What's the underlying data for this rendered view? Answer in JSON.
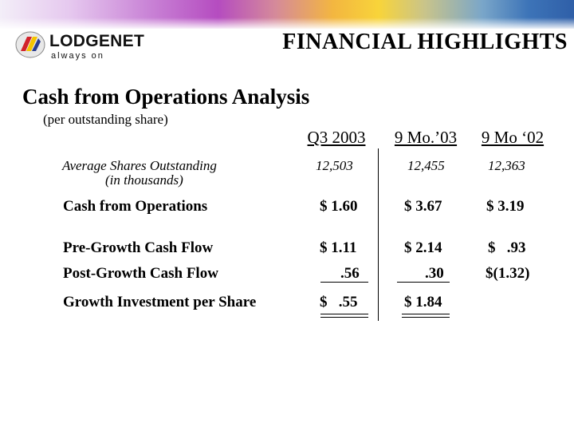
{
  "brand": {
    "name": "LODGENET",
    "tagline": "always on",
    "colors": {
      "red": "#d2232a",
      "blue": "#2b3d8f",
      "yellow": "#f5c400",
      "banner_blue": "#2f5fa8",
      "banner_purple": "#b54cc0",
      "banner_gold": "#f3b640"
    }
  },
  "header": {
    "title": "FINANCIAL HIGHLIGHTS"
  },
  "section": {
    "title": "Cash from Operations Analysis",
    "subtitle": "(per outstanding share)"
  },
  "table": {
    "columns": [
      "Q3 2003",
      "9 Mo.’03",
      "9 Mo ‘02"
    ],
    "avg_shares": {
      "label": "Average Shares Outstanding",
      "sublabel": "(in thousands)",
      "values": [
        "12,503",
        "12,455",
        "12,363"
      ]
    },
    "cash_ops": {
      "label": "Cash from Operations",
      "values": [
        "$ 1.60",
        "$ 3.67",
        "$ 3.19"
      ]
    },
    "pre_growth": {
      "label": "Pre-Growth Cash Flow",
      "values": [
        "$ 1.11",
        "$ 2.14",
        "$   .93"
      ]
    },
    "post_growth": {
      "label": "Post-Growth Cash Flow",
      "values": [
        ".56",
        ".30",
        "$(1.32)"
      ]
    },
    "growth_inv": {
      "label": "Growth Investment per Share",
      "values": [
        "$   .55",
        "$ 1.84",
        ""
      ]
    }
  }
}
